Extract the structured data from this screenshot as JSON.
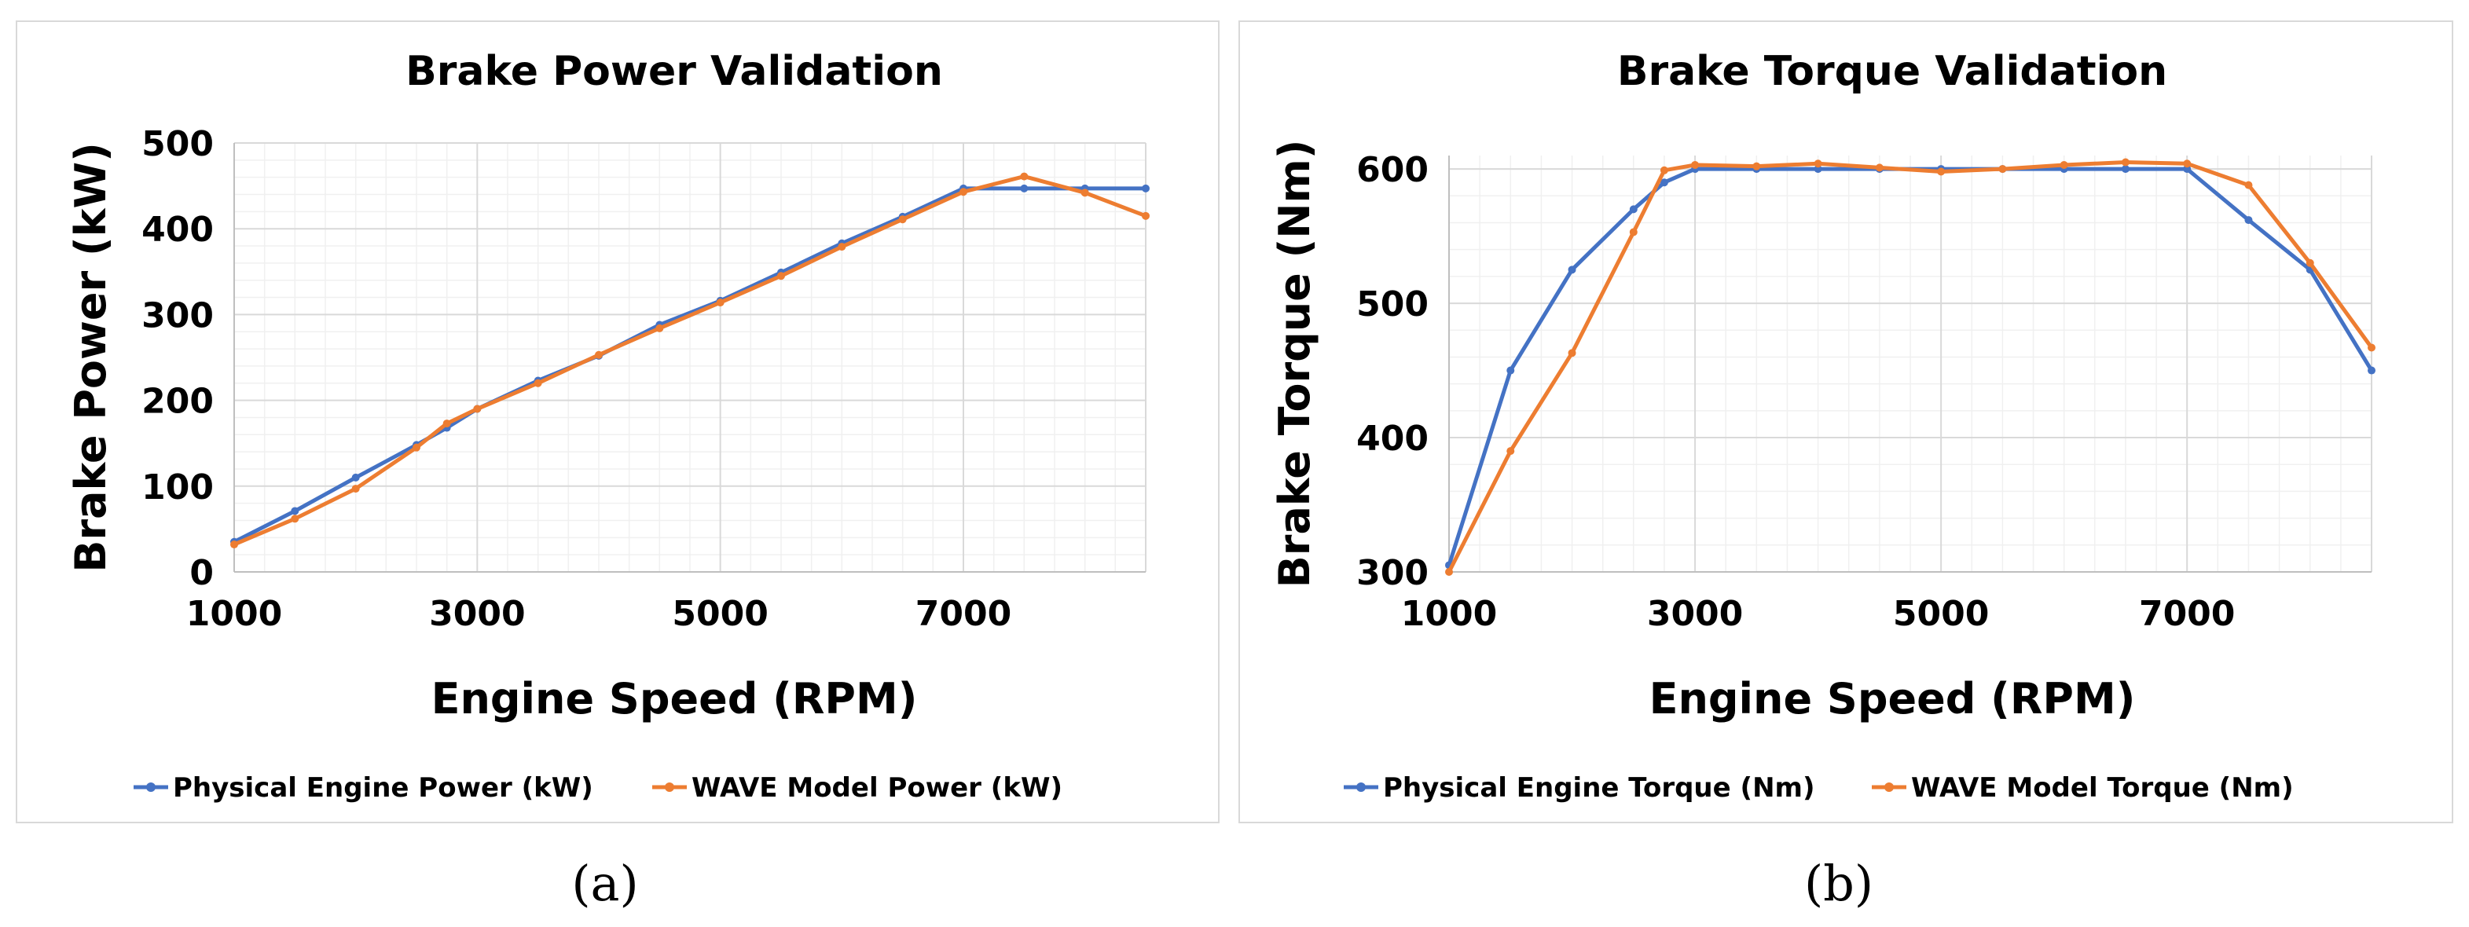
{
  "chart_data": [
    {
      "type": "line",
      "title": "Brake Power Validation",
      "xlabel": "Engine Speed (RPM)",
      "ylabel": "Brake Power (kW)",
      "xlim": [
        1000,
        8500
      ],
      "ylim": [
        0,
        500
      ],
      "x_ticks": [
        1000,
        3000,
        5000,
        7000
      ],
      "y_ticks": [
        0,
        100,
        200,
        300,
        400,
        500
      ],
      "x_tick_labels": [
        "1000",
        "3000",
        "5000",
        "7000"
      ],
      "y_tick_labels": [
        "0",
        "100",
        "200",
        "300",
        "400",
        "500"
      ],
      "grid": true,
      "legend_position": "bottom",
      "series": [
        {
          "name": "Physical Engine Power (kW)",
          "color": "#4472C4",
          "x": [
            1000,
            1500,
            2000,
            2500,
            2750,
            3000,
            3500,
            4000,
            4500,
            5000,
            5500,
            6000,
            6500,
            7000,
            7500,
            8000,
            8500
          ],
          "values": [
            35,
            71,
            110,
            148,
            168,
            190,
            223,
            252,
            288,
            316,
            349,
            383,
            414,
            447,
            447,
            447,
            447
          ]
        },
        {
          "name": "WAVE Model Power (kW)",
          "color": "#ED7D31",
          "x": [
            1000,
            1500,
            2000,
            2500,
            2750,
            3000,
            3500,
            4000,
            4500,
            5000,
            5500,
            6000,
            6500,
            7000,
            7500,
            8000,
            8500
          ],
          "values": [
            32,
            62,
            97,
            145,
            173,
            190,
            220,
            253,
            284,
            314,
            345,
            379,
            411,
            443,
            461,
            442,
            415
          ]
        }
      ]
    },
    {
      "type": "line",
      "title": "Brake Torque Validation",
      "xlabel": "Engine Speed (RPM)",
      "ylabel": "Brake Torque (Nm)",
      "xlim": [
        1000,
        8500
      ],
      "ylim": [
        300,
        610
      ],
      "x_ticks": [
        1000,
        3000,
        5000,
        7000
      ],
      "y_ticks": [
        300,
        400,
        500,
        600
      ],
      "x_tick_labels": [
        "1000",
        "3000",
        "5000",
        "7000"
      ],
      "y_tick_labels": [
        "300",
        "400",
        "500",
        "600"
      ],
      "grid": true,
      "legend_position": "bottom",
      "series": [
        {
          "name": "Physical Engine Torque (Nm)",
          "color": "#4472C4",
          "x": [
            1000,
            1500,
            2000,
            2500,
            2750,
            3000,
            3500,
            4000,
            4500,
            5000,
            5500,
            6000,
            6500,
            7000,
            7500,
            8000,
            8500
          ],
          "values": [
            305,
            450,
            525,
            570,
            590,
            600,
            600,
            600,
            600,
            600,
            600,
            600,
            600,
            600,
            562,
            525,
            450
          ]
        },
        {
          "name": "WAVE Model Torque (Nm)",
          "color": "#ED7D31",
          "x": [
            1000,
            1500,
            2000,
            2500,
            2750,
            3000,
            3500,
            4000,
            4500,
            5000,
            5500,
            6000,
            6500,
            7000,
            7500,
            8000,
            8500
          ],
          "values": [
            300,
            390,
            463,
            553,
            599,
            603,
            602,
            604,
            601,
            598,
            600,
            603,
            605,
            604,
            588,
            530,
            467
          ]
        }
      ]
    }
  ],
  "sublabels": [
    "(a)",
    "(b)"
  ]
}
